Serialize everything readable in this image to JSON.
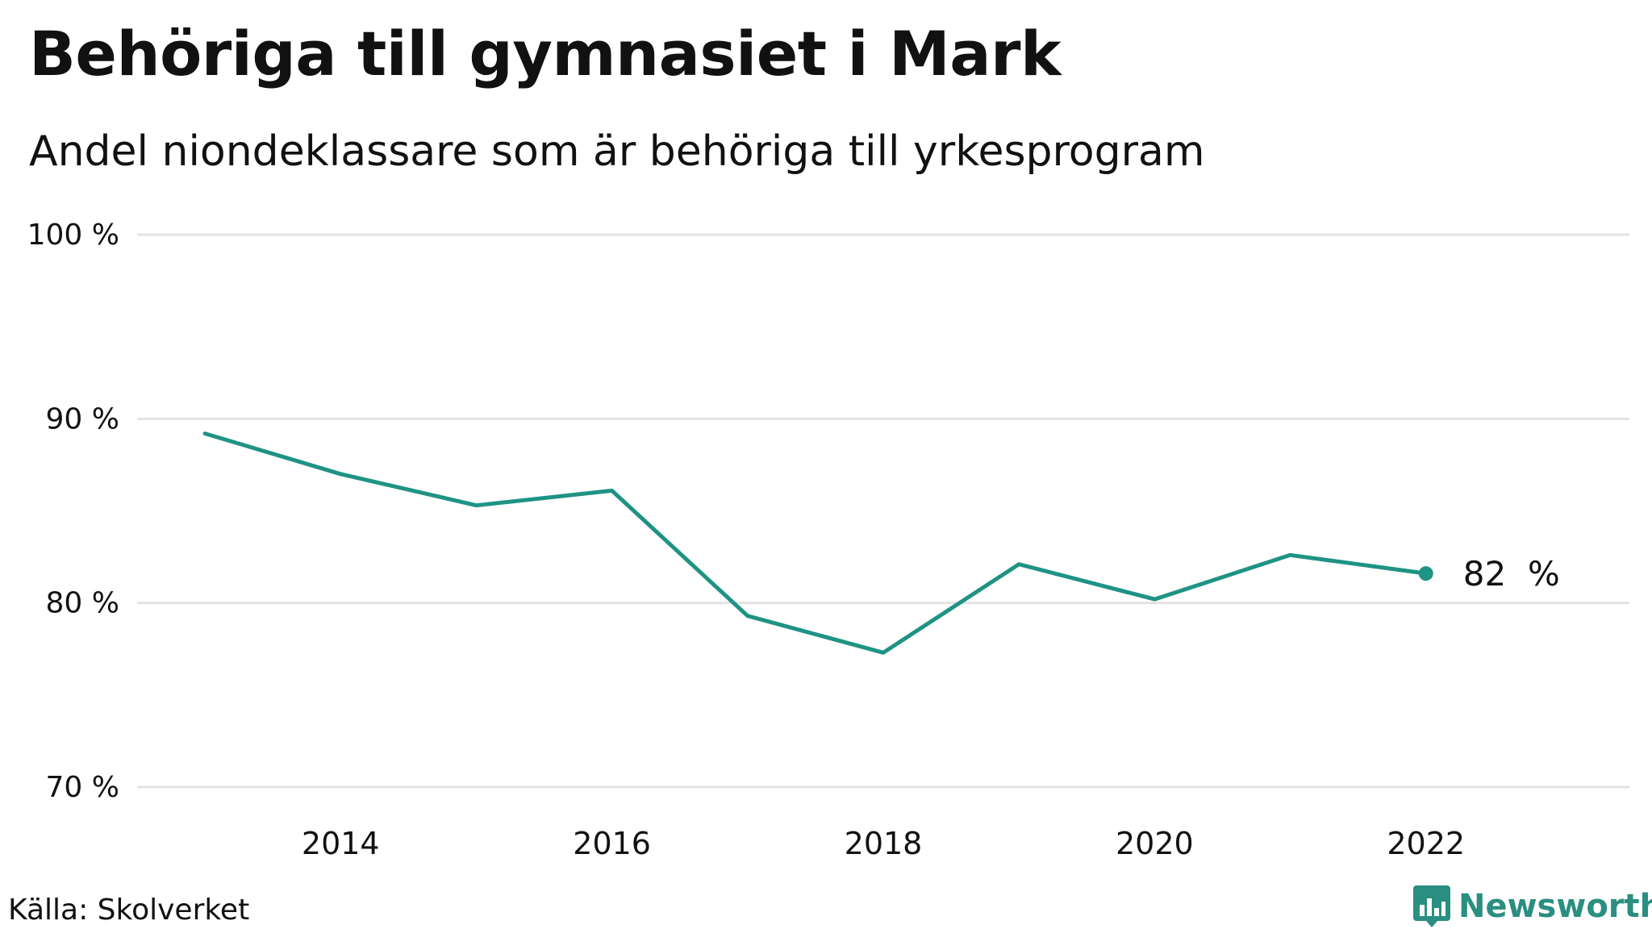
{
  "title": "Behöriga till gymnasiet i Mark",
  "subtitle": "Andel niondeklassare som är behöriga till yrkesprogram",
  "source": "Källa: Skolverket",
  "brand": {
    "name": "Newsworthy",
    "icon": "newsworthy-logo-icon",
    "color": "#2a8f80"
  },
  "chart_data": {
    "type": "line",
    "x": [
      2013,
      2014,
      2015,
      2016,
      2017,
      2018,
      2019,
      2020,
      2021,
      2022
    ],
    "series": [
      {
        "values": [
          89.2,
          87.0,
          85.3,
          86.1,
          79.3,
          77.3,
          82.1,
          80.2,
          82.6,
          81.6
        ],
        "color": "#1f9384"
      }
    ],
    "ylim": [
      70,
      100
    ],
    "yticks": [
      70,
      80,
      90,
      100
    ],
    "ytick_labels": [
      "70 %",
      "80 %",
      "90 %",
      "100 %"
    ],
    "xlim": [
      2012.5,
      2023.5
    ],
    "xticks": [
      2014,
      2016,
      2018,
      2020,
      2022
    ],
    "xtick_labels": [
      "2014",
      "2016",
      "2018",
      "2020",
      "2022"
    ],
    "last_value_label": "82  %",
    "grid": "horizontal",
    "gridline_color": "#e3e3e3"
  }
}
